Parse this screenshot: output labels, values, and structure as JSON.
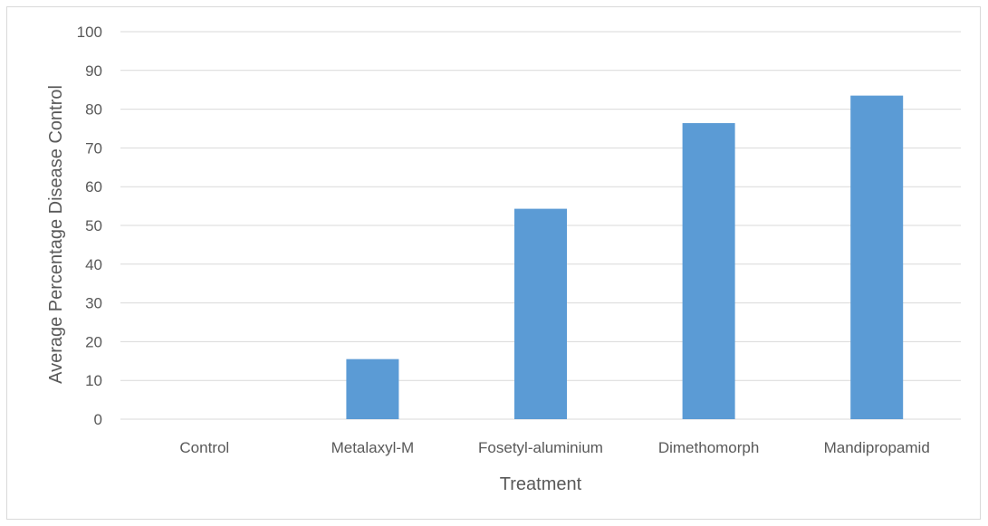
{
  "chart_data": {
    "type": "bar",
    "title": "",
    "xlabel": "Treatment",
    "ylabel": "Average Percentage Disease Control",
    "categories": [
      "Control",
      "Metalaxyl-M",
      "Fosetyl-aluminium",
      "Dimethomorph",
      "Mandipropamid"
    ],
    "values": [
      0,
      15.5,
      54.3,
      76.4,
      83.5
    ],
    "ylim": [
      0,
      100
    ],
    "yticks": [
      "0",
      "10",
      "20",
      "30",
      "40",
      "50",
      "60",
      "70",
      "80",
      "90",
      "100"
    ],
    "grid": true,
    "legend": "none",
    "bar_color": "#5b9bd5",
    "grid_color": "#d9d9d9"
  }
}
